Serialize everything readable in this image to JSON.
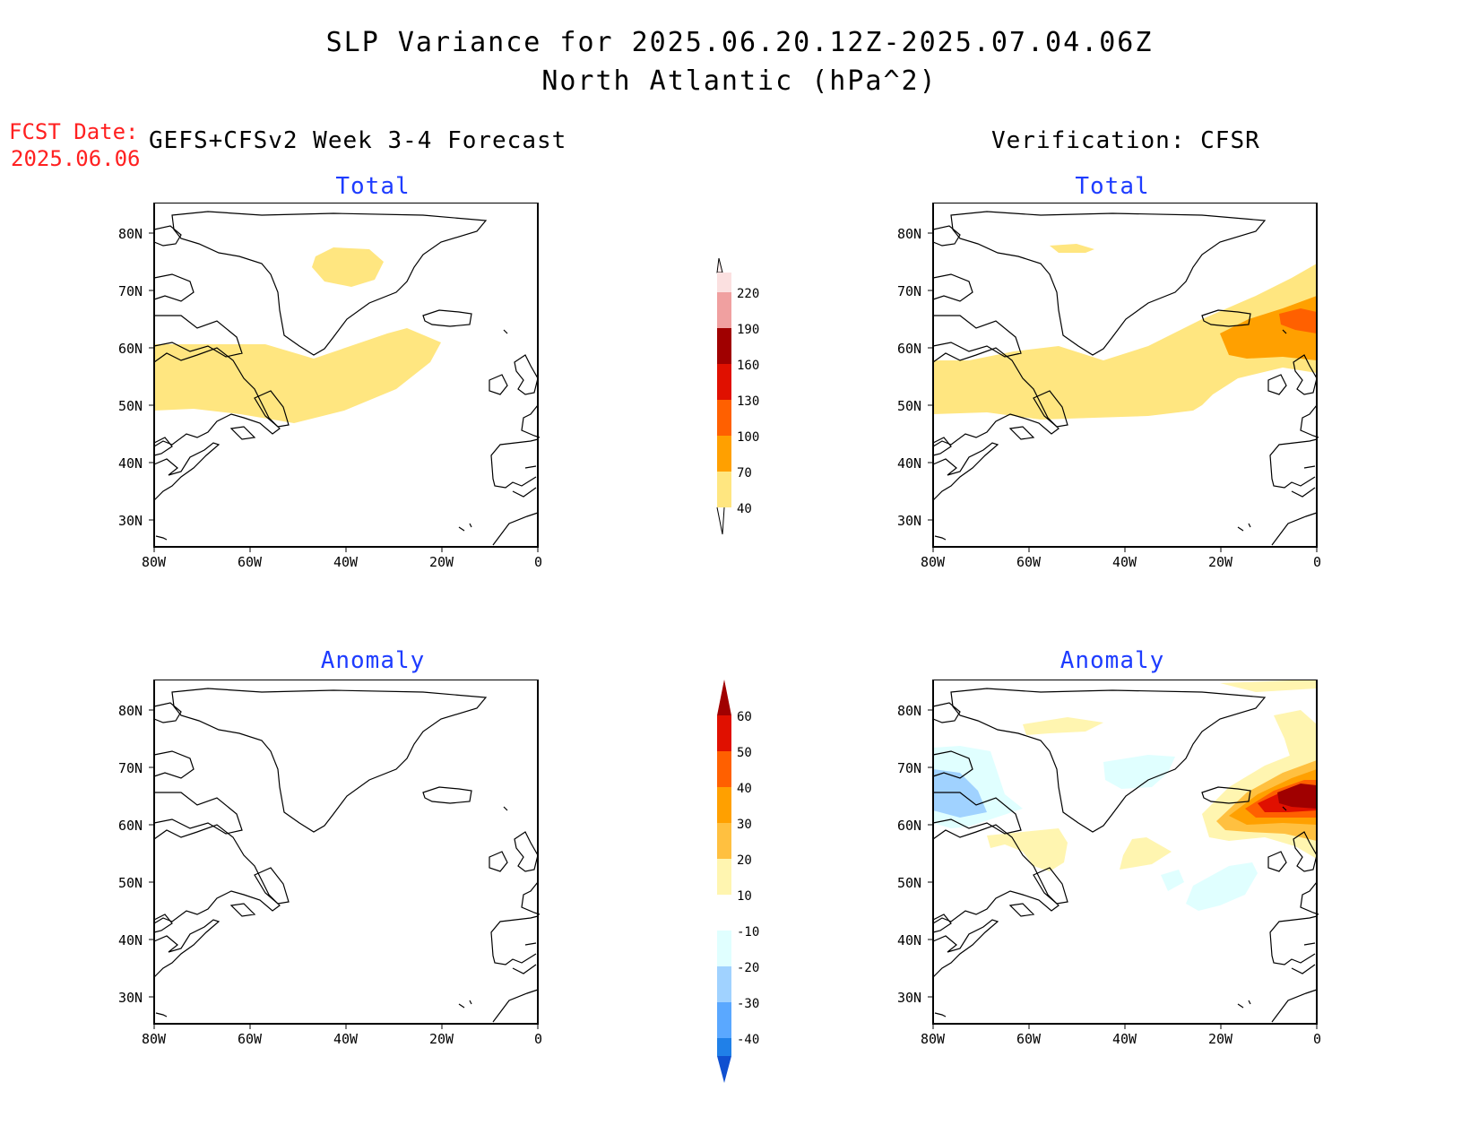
{
  "header": {
    "title_line1": "SLP Variance for 2025.06.20.12Z-2025.07.04.06Z",
    "title_line2": "North Atlantic (hPa^2)",
    "fcst_label": "FCST Date:",
    "fcst_date": "2025.06.06",
    "left_subtitle": "GEFS+CFSv2 Week 3-4 Forecast",
    "right_subtitle": "Verification: CFSR"
  },
  "panels": {
    "fcst_total_title": "Total",
    "fcst_anom_title": "Anomaly",
    "verif_total_title": "Total",
    "verif_anom_title": "Anomaly"
  },
  "axes": {
    "lat_labels": [
      "80N",
      "70N",
      "60N",
      "50N",
      "40N",
      "30N"
    ],
    "lon_labels": [
      "80W",
      "60W",
      "40W",
      "20W",
      "0"
    ]
  },
  "colorbar_total": {
    "levels": [
      "40",
      "70",
      "100",
      "130",
      "160",
      "190",
      "220"
    ],
    "colors": [
      "#ffe680",
      "#ffa000",
      "#ff6000",
      "#e01000",
      "#a00000",
      "#f0a0a0",
      "#fbe0e0"
    ]
  },
  "colorbar_anomaly": {
    "levels": [
      "60",
      "50",
      "40",
      "30",
      "20",
      "10",
      "-10",
      "-20",
      "-30",
      "-40"
    ],
    "colors_top_down": [
      "#a00000",
      "#e01000",
      "#ff6000",
      "#ffa000",
      "#ffc040",
      "#fff5b0",
      "#ffffff",
      "#e0ffff",
      "#a0d2ff",
      "#5aa8ff",
      "#2080e8",
      "#1050d0"
    ]
  }
}
